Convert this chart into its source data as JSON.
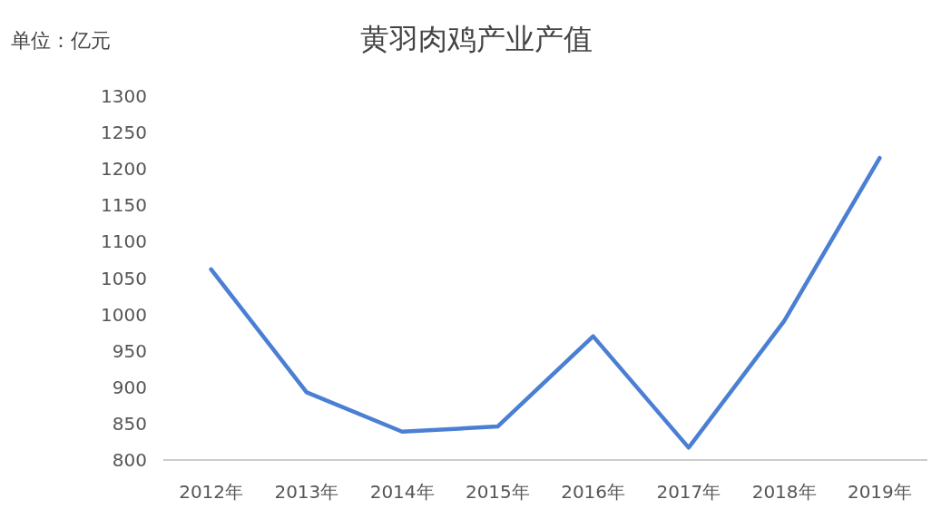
{
  "chart_data": {
    "type": "line",
    "title": "黄羽肉鸡产业产值",
    "annotations": [
      "单位：亿元"
    ],
    "categories": [
      "2012年",
      "2013年",
      "2014年",
      "2015年",
      "2016年",
      "2017年",
      "2018年",
      "2019年"
    ],
    "values": [
      1062,
      893,
      839,
      846,
      970,
      817,
      991,
      1215
    ],
    "color": "#4a7fd4",
    "ylim": [
      800,
      1300
    ],
    "yticks": [
      800,
      850,
      900,
      950,
      1000,
      1050,
      1100,
      1150,
      1200,
      1250,
      1300
    ]
  }
}
